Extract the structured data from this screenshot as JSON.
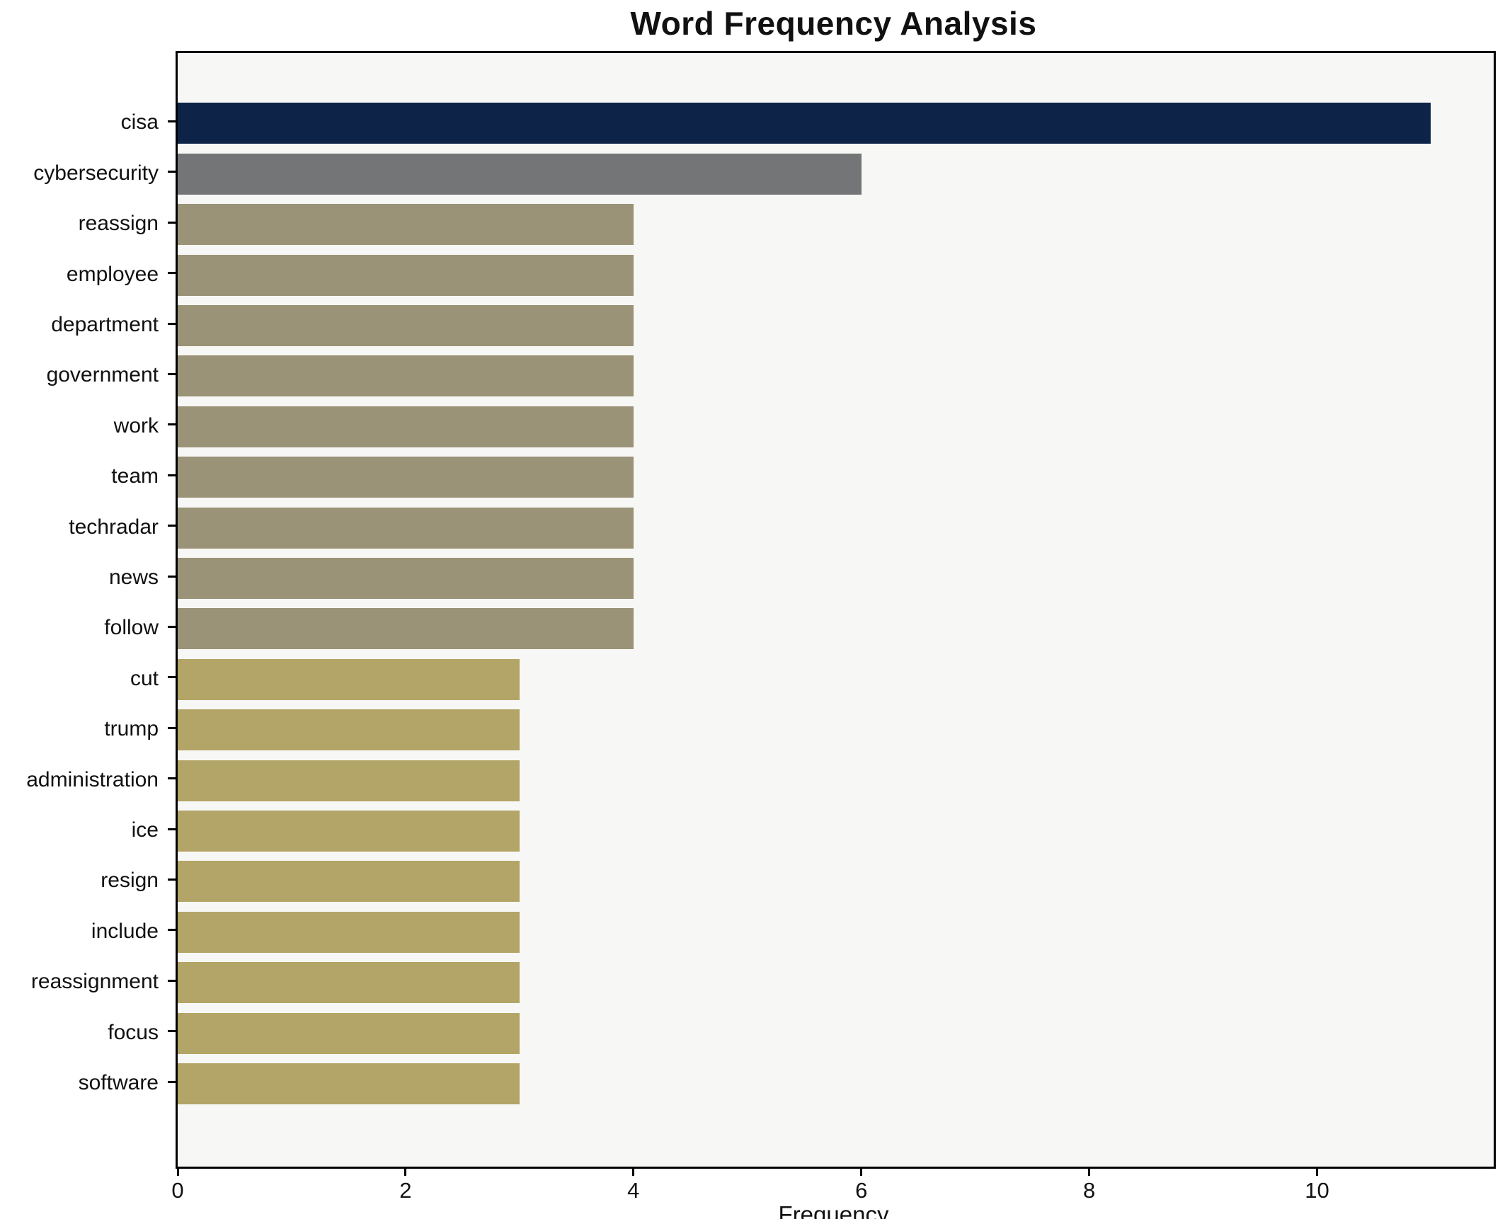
{
  "chart_data": {
    "type": "bar",
    "orientation": "horizontal",
    "title": "Word Frequency Analysis",
    "xlabel": "Frequency",
    "ylabel": "",
    "categories": [
      "cisa",
      "cybersecurity",
      "reassign",
      "employee",
      "department",
      "government",
      "work",
      "team",
      "techradar",
      "news",
      "follow",
      "cut",
      "trump",
      "administration",
      "ice",
      "resign",
      "include",
      "reassignment",
      "focus",
      "software"
    ],
    "values": [
      11,
      6,
      4,
      4,
      4,
      4,
      4,
      4,
      4,
      4,
      4,
      3,
      3,
      3,
      3,
      3,
      3,
      3,
      3,
      3
    ],
    "bar_colors": [
      "#0d2347",
      "#747576",
      "#9b9377",
      "#9b9377",
      "#9b9377",
      "#9b9377",
      "#9b9377",
      "#9b9377",
      "#9b9377",
      "#9b9377",
      "#9b9377",
      "#b3a567",
      "#b3a567",
      "#b3a567",
      "#b3a567",
      "#b3a567",
      "#b3a567",
      "#b3a567",
      "#b3a567",
      "#b3a567"
    ],
    "xlim": [
      0,
      11.55
    ],
    "xticks": [
      0,
      2,
      4,
      6,
      8,
      10
    ],
    "grid": false,
    "legend_position": "none",
    "plot_bg": "#f7f7f5",
    "fig_bg": "#ffffff",
    "axis_color": "#000000",
    "text_color": "#111111"
  }
}
